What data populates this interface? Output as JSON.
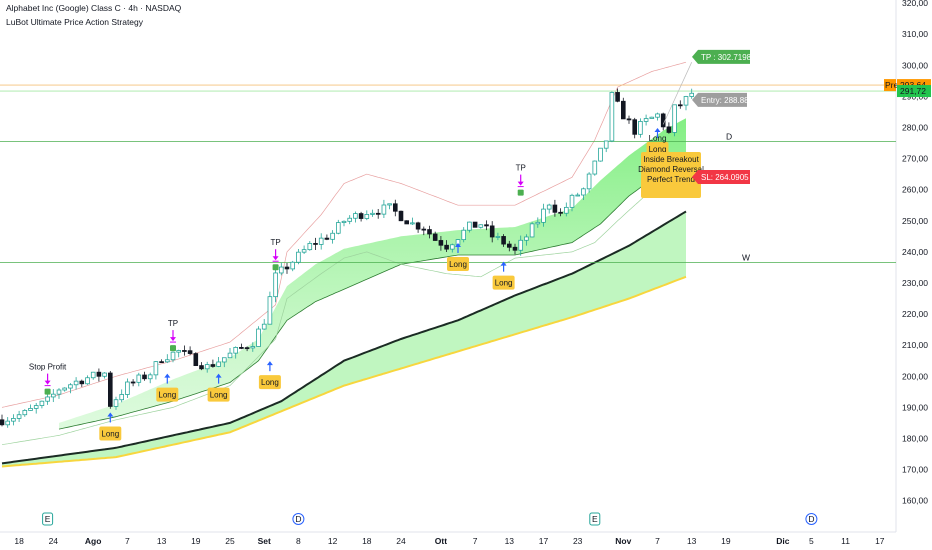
{
  "header": {
    "symbol_line": "Alphabet Inc (Google) Class C · 4h · NASDAQ",
    "strategy_line": "LuBot Ultimate Price Action Strategy"
  },
  "colors": {
    "up": "#26a69a",
    "down": "#131722",
    "ema_dark": "#1b2b24",
    "ema_yellow": "#f7d63e",
    "cloud": "#7dee7d",
    "band_fill": "#b9f5b9",
    "hline": "#4caf50",
    "long_label": "#f9c93c",
    "tp_label": "#4caf50",
    "sl_label": "#f23645",
    "entry_label": "#9e9e9e",
    "arrow_blue": "#2962ff",
    "arrow_magenta": "#d500f9",
    "price_green": "#22c54e",
    "price_orange": "#ff9800"
  },
  "chart_data": {
    "type": "candlestick",
    "title": "Alphabet Inc (Google) Class C · 4h · NASDAQ",
    "ylim": [
      157,
      321
    ],
    "y_ticks": [
      "320,00",
      "310,00",
      "300,00",
      "290,00",
      "280,00",
      "270,00",
      "260,00",
      "250,00",
      "240,00",
      "230,00",
      "220,00",
      "210,00",
      "200,00",
      "190,00",
      "180,00",
      "170,00",
      "160,00"
    ],
    "y_tick_values": [
      320,
      310,
      300,
      290,
      280,
      270,
      260,
      250,
      240,
      230,
      220,
      210,
      200,
      190,
      180,
      170,
      160
    ],
    "x_ticks": [
      {
        "label": "18",
        "bold": false,
        "i": 3
      },
      {
        "label": "24",
        "bold": false,
        "i": 9
      },
      {
        "label": "Ago",
        "bold": true,
        "i": 16
      },
      {
        "label": "7",
        "bold": false,
        "i": 22
      },
      {
        "label": "13",
        "bold": false,
        "i": 28
      },
      {
        "label": "19",
        "bold": false,
        "i": 34
      },
      {
        "label": "25",
        "bold": false,
        "i": 40
      },
      {
        "label": "Set",
        "bold": true,
        "i": 46
      },
      {
        "label": "8",
        "bold": false,
        "i": 52
      },
      {
        "label": "12",
        "bold": false,
        "i": 58
      },
      {
        "label": "18",
        "bold": false,
        "i": 64
      },
      {
        "label": "24",
        "bold": false,
        "i": 70
      },
      {
        "label": "Ott",
        "bold": true,
        "i": 77
      },
      {
        "label": "7",
        "bold": false,
        "i": 83
      },
      {
        "label": "13",
        "bold": false,
        "i": 89
      },
      {
        "label": "17",
        "bold": false,
        "i": 95
      },
      {
        "label": "23",
        "bold": false,
        "i": 101
      },
      {
        "label": "Nov",
        "bold": true,
        "i": 109
      },
      {
        "label": "7",
        "bold": false,
        "i": 115
      },
      {
        "label": "13",
        "bold": false,
        "i": 121
      },
      {
        "label": "19",
        "bold": false,
        "i": 127
      },
      {
        "label": "Dic",
        "bold": true,
        "i": 137
      },
      {
        "label": "5",
        "bold": false,
        "i": 142
      },
      {
        "label": "11",
        "bold": false,
        "i": 148
      },
      {
        "label": "17",
        "bold": false,
        "i": 154
      }
    ],
    "x_range_bars": [
      0,
      160
    ],
    "price_path": [
      [
        0,
        186
      ],
      [
        4,
        188
      ],
      [
        8,
        192
      ],
      [
        10,
        196
      ],
      [
        14,
        199
      ],
      [
        18,
        201
      ],
      [
        19,
        191
      ],
      [
        22,
        197
      ],
      [
        26,
        201
      ],
      [
        28,
        206
      ],
      [
        31,
        208
      ],
      [
        34,
        205
      ],
      [
        36,
        203
      ],
      [
        40,
        207
      ],
      [
        44,
        211
      ],
      [
        46,
        218
      ],
      [
        48,
        232
      ],
      [
        51,
        237
      ],
      [
        54,
        242
      ],
      [
        58,
        246
      ],
      [
        60,
        250
      ],
      [
        64,
        253
      ],
      [
        68,
        254
      ],
      [
        72,
        249
      ],
      [
        74,
        248
      ],
      [
        76,
        244
      ],
      [
        78,
        242
      ],
      [
        80,
        245
      ],
      [
        82,
        248
      ],
      [
        84,
        249
      ],
      [
        86,
        245
      ],
      [
        88,
        243
      ],
      [
        90,
        240
      ],
      [
        92,
        245
      ],
      [
        94,
        250
      ],
      [
        96,
        256
      ],
      [
        98,
        252
      ],
      [
        100,
        257
      ],
      [
        102,
        260
      ],
      [
        104,
        268
      ],
      [
        106,
        276
      ],
      [
        107,
        290
      ],
      [
        109,
        284
      ],
      [
        111,
        279
      ],
      [
        113,
        282
      ],
      [
        115,
        284
      ],
      [
        117,
        278
      ],
      [
        118,
        286
      ],
      [
        120,
        289
      ],
      [
        121,
        291
      ]
    ],
    "ema_dark": [
      [
        0,
        172
      ],
      [
        20,
        177
      ],
      [
        40,
        185
      ],
      [
        49,
        192
      ],
      [
        60,
        205
      ],
      [
        70,
        212
      ],
      [
        80,
        218
      ],
      [
        90,
        226
      ],
      [
        100,
        233
      ],
      [
        110,
        242
      ],
      [
        120,
        253
      ]
    ],
    "ema_yellow": [
      [
        0,
        171
      ],
      [
        20,
        174
      ],
      [
        40,
        182
      ],
      [
        60,
        197
      ],
      [
        80,
        208
      ],
      [
        100,
        219
      ],
      [
        110,
        225
      ],
      [
        120,
        232
      ]
    ],
    "cloud_top": [
      [
        10,
        185
      ],
      [
        20,
        191
      ],
      [
        30,
        199
      ],
      [
        40,
        206
      ],
      [
        45,
        212
      ],
      [
        50,
        229
      ],
      [
        55,
        236
      ],
      [
        60,
        241
      ],
      [
        70,
        245
      ],
      [
        80,
        247
      ],
      [
        90,
        248
      ],
      [
        100,
        254
      ],
      [
        105,
        263
      ],
      [
        110,
        271
      ],
      [
        116,
        279
      ],
      [
        120,
        283
      ]
    ],
    "cloud_bottom": [
      [
        10,
        183
      ],
      [
        20,
        187
      ],
      [
        30,
        192
      ],
      [
        40,
        198
      ],
      [
        45,
        205
      ],
      [
        50,
        218
      ],
      [
        55,
        224
      ],
      [
        60,
        228
      ],
      [
        70,
        236
      ],
      [
        80,
        239
      ],
      [
        90,
        239
      ],
      [
        100,
        243
      ],
      [
        105,
        249
      ],
      [
        110,
        258
      ],
      [
        116,
        266
      ],
      [
        120,
        268
      ]
    ],
    "upper_band": [
      [
        0,
        190
      ],
      [
        10,
        194
      ],
      [
        20,
        200
      ],
      [
        30,
        205
      ],
      [
        40,
        211
      ],
      [
        48,
        223
      ],
      [
        50,
        240
      ],
      [
        56,
        252
      ],
      [
        60,
        262
      ],
      [
        64,
        265
      ],
      [
        70,
        262
      ],
      [
        80,
        255
      ],
      [
        90,
        255
      ],
      [
        100,
        264
      ],
      [
        104,
        276
      ],
      [
        108,
        293
      ],
      [
        114,
        298
      ],
      [
        120,
        301
      ]
    ],
    "lower_band": [
      [
        0,
        178
      ],
      [
        10,
        181
      ],
      [
        20,
        186
      ],
      [
        30,
        190
      ],
      [
        40,
        197
      ],
      [
        48,
        212
      ],
      [
        50,
        225
      ],
      [
        56,
        233
      ],
      [
        60,
        238
      ],
      [
        64,
        240
      ],
      [
        70,
        236
      ],
      [
        78,
        233
      ],
      [
        84,
        232
      ],
      [
        90,
        238
      ],
      [
        100,
        240
      ],
      [
        104,
        243
      ],
      [
        108,
        250
      ],
      [
        114,
        260
      ],
      [
        120,
        266
      ]
    ],
    "horizontal_lines": [
      {
        "y": 293.64,
        "style": "orange"
      },
      {
        "y": 291.72,
        "style": "green"
      },
      {
        "y": 275.5,
        "label": "D"
      },
      {
        "y": 236.6,
        "label": "W"
      }
    ],
    "signals": [
      {
        "type": "long",
        "i": 19,
        "y": 184.5,
        "label": "Long"
      },
      {
        "type": "long",
        "i": 29,
        "y": 197,
        "label": "Long"
      },
      {
        "type": "long",
        "i": 38,
        "y": 197,
        "label": "Long"
      },
      {
        "type": "long",
        "i": 47,
        "y": 201,
        "label": "Long"
      },
      {
        "type": "long",
        "i": 80,
        "y": 239,
        "label": "Long"
      },
      {
        "type": "long",
        "i": 88,
        "y": 233,
        "label": "Long"
      },
      {
        "type": "long",
        "i": 115,
        "y": 276,
        "label": "Long"
      },
      {
        "type": "exit",
        "i": 8,
        "y": 197,
        "label": "Stop Profit"
      },
      {
        "type": "exit",
        "i": 30,
        "y": 211,
        "label": "TP"
      },
      {
        "type": "exit",
        "i": 48,
        "y": 237,
        "label": "TP"
      },
      {
        "type": "exit",
        "i": 91,
        "y": 261,
        "label": "TP"
      }
    ],
    "trade_box": {
      "lines": [
        "Long",
        "Inside Breakout",
        "Diamond Reversal",
        "Perfect Trend"
      ],
      "tp": "TP : 302.7198",
      "entry": "Entry: 288.88",
      "sl": "SL: 264.0905",
      "tp_value": 302.7198,
      "entry_value": 288.88,
      "sl_value": 264.0905
    },
    "price_tags": [
      {
        "text": "293,64",
        "prefix": "Pre",
        "value": 293.64,
        "color": "orange"
      },
      {
        "text": "291,72",
        "value": 291.72,
        "color": "green"
      }
    ],
    "earnings_markers": [
      {
        "i": 8,
        "label": "E"
      },
      {
        "i": 104,
        "label": "E"
      }
    ],
    "dividend_markers": [
      {
        "i": 52,
        "label": "D"
      },
      {
        "i": 142,
        "label": "D"
      }
    ]
  }
}
